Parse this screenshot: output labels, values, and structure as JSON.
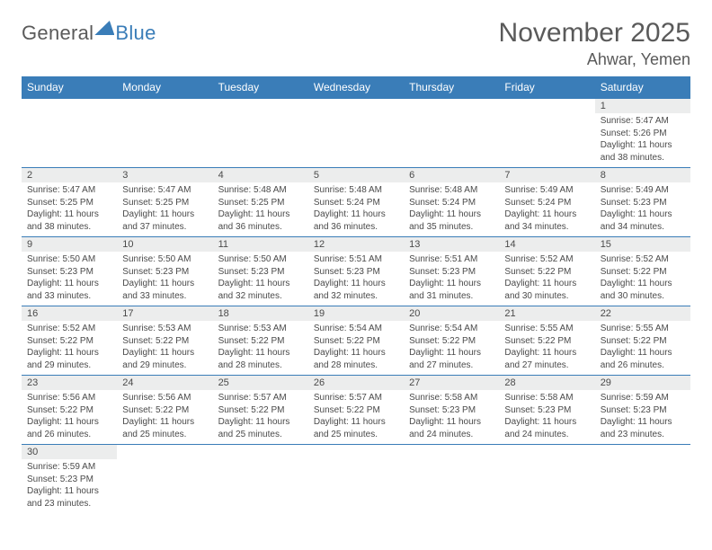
{
  "brand": {
    "general": "General",
    "blue": "Blue"
  },
  "header": {
    "title": "November 2025",
    "location": "Ahwar, Yemen"
  },
  "weekdays": [
    "Sunday",
    "Monday",
    "Tuesday",
    "Wednesday",
    "Thursday",
    "Friday",
    "Saturday"
  ],
  "colors": {
    "header_bg": "#3a7db8",
    "header_text": "#ffffff",
    "daynum_bg": "#eceded",
    "text": "#4a4a4a",
    "border": "#3a7db8"
  },
  "weeks": [
    [
      null,
      null,
      null,
      null,
      null,
      null,
      {
        "n": "1",
        "sr": "Sunrise: 5:47 AM",
        "ss": "Sunset: 5:26 PM",
        "dl": "Daylight: 11 hours and 38 minutes."
      }
    ],
    [
      {
        "n": "2",
        "sr": "Sunrise: 5:47 AM",
        "ss": "Sunset: 5:25 PM",
        "dl": "Daylight: 11 hours and 38 minutes."
      },
      {
        "n": "3",
        "sr": "Sunrise: 5:47 AM",
        "ss": "Sunset: 5:25 PM",
        "dl": "Daylight: 11 hours and 37 minutes."
      },
      {
        "n": "4",
        "sr": "Sunrise: 5:48 AM",
        "ss": "Sunset: 5:25 PM",
        "dl": "Daylight: 11 hours and 36 minutes."
      },
      {
        "n": "5",
        "sr": "Sunrise: 5:48 AM",
        "ss": "Sunset: 5:24 PM",
        "dl": "Daylight: 11 hours and 36 minutes."
      },
      {
        "n": "6",
        "sr": "Sunrise: 5:48 AM",
        "ss": "Sunset: 5:24 PM",
        "dl": "Daylight: 11 hours and 35 minutes."
      },
      {
        "n": "7",
        "sr": "Sunrise: 5:49 AM",
        "ss": "Sunset: 5:24 PM",
        "dl": "Daylight: 11 hours and 34 minutes."
      },
      {
        "n": "8",
        "sr": "Sunrise: 5:49 AM",
        "ss": "Sunset: 5:23 PM",
        "dl": "Daylight: 11 hours and 34 minutes."
      }
    ],
    [
      {
        "n": "9",
        "sr": "Sunrise: 5:50 AM",
        "ss": "Sunset: 5:23 PM",
        "dl": "Daylight: 11 hours and 33 minutes."
      },
      {
        "n": "10",
        "sr": "Sunrise: 5:50 AM",
        "ss": "Sunset: 5:23 PM",
        "dl": "Daylight: 11 hours and 33 minutes."
      },
      {
        "n": "11",
        "sr": "Sunrise: 5:50 AM",
        "ss": "Sunset: 5:23 PM",
        "dl": "Daylight: 11 hours and 32 minutes."
      },
      {
        "n": "12",
        "sr": "Sunrise: 5:51 AM",
        "ss": "Sunset: 5:23 PM",
        "dl": "Daylight: 11 hours and 32 minutes."
      },
      {
        "n": "13",
        "sr": "Sunrise: 5:51 AM",
        "ss": "Sunset: 5:23 PM",
        "dl": "Daylight: 11 hours and 31 minutes."
      },
      {
        "n": "14",
        "sr": "Sunrise: 5:52 AM",
        "ss": "Sunset: 5:22 PM",
        "dl": "Daylight: 11 hours and 30 minutes."
      },
      {
        "n": "15",
        "sr": "Sunrise: 5:52 AM",
        "ss": "Sunset: 5:22 PM",
        "dl": "Daylight: 11 hours and 30 minutes."
      }
    ],
    [
      {
        "n": "16",
        "sr": "Sunrise: 5:52 AM",
        "ss": "Sunset: 5:22 PM",
        "dl": "Daylight: 11 hours and 29 minutes."
      },
      {
        "n": "17",
        "sr": "Sunrise: 5:53 AM",
        "ss": "Sunset: 5:22 PM",
        "dl": "Daylight: 11 hours and 29 minutes."
      },
      {
        "n": "18",
        "sr": "Sunrise: 5:53 AM",
        "ss": "Sunset: 5:22 PM",
        "dl": "Daylight: 11 hours and 28 minutes."
      },
      {
        "n": "19",
        "sr": "Sunrise: 5:54 AM",
        "ss": "Sunset: 5:22 PM",
        "dl": "Daylight: 11 hours and 28 minutes."
      },
      {
        "n": "20",
        "sr": "Sunrise: 5:54 AM",
        "ss": "Sunset: 5:22 PM",
        "dl": "Daylight: 11 hours and 27 minutes."
      },
      {
        "n": "21",
        "sr": "Sunrise: 5:55 AM",
        "ss": "Sunset: 5:22 PM",
        "dl": "Daylight: 11 hours and 27 minutes."
      },
      {
        "n": "22",
        "sr": "Sunrise: 5:55 AM",
        "ss": "Sunset: 5:22 PM",
        "dl": "Daylight: 11 hours and 26 minutes."
      }
    ],
    [
      {
        "n": "23",
        "sr": "Sunrise: 5:56 AM",
        "ss": "Sunset: 5:22 PM",
        "dl": "Daylight: 11 hours and 26 minutes."
      },
      {
        "n": "24",
        "sr": "Sunrise: 5:56 AM",
        "ss": "Sunset: 5:22 PM",
        "dl": "Daylight: 11 hours and 25 minutes."
      },
      {
        "n": "25",
        "sr": "Sunrise: 5:57 AM",
        "ss": "Sunset: 5:22 PM",
        "dl": "Daylight: 11 hours and 25 minutes."
      },
      {
        "n": "26",
        "sr": "Sunrise: 5:57 AM",
        "ss": "Sunset: 5:22 PM",
        "dl": "Daylight: 11 hours and 25 minutes."
      },
      {
        "n": "27",
        "sr": "Sunrise: 5:58 AM",
        "ss": "Sunset: 5:23 PM",
        "dl": "Daylight: 11 hours and 24 minutes."
      },
      {
        "n": "28",
        "sr": "Sunrise: 5:58 AM",
        "ss": "Sunset: 5:23 PM",
        "dl": "Daylight: 11 hours and 24 minutes."
      },
      {
        "n": "29",
        "sr": "Sunrise: 5:59 AM",
        "ss": "Sunset: 5:23 PM",
        "dl": "Daylight: 11 hours and 23 minutes."
      }
    ],
    [
      {
        "n": "30",
        "sr": "Sunrise: 5:59 AM",
        "ss": "Sunset: 5:23 PM",
        "dl": "Daylight: 11 hours and 23 minutes."
      },
      null,
      null,
      null,
      null,
      null,
      null
    ]
  ]
}
